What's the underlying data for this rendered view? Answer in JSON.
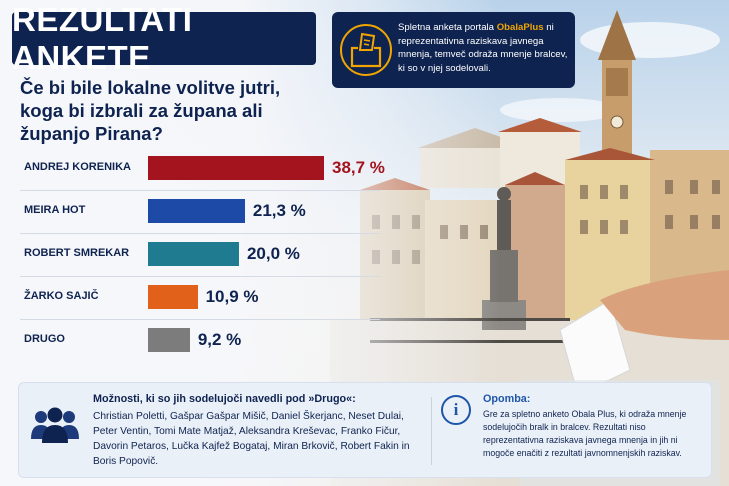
{
  "header": {
    "title": "REZULTATI ANKETE",
    "question": "Če bi bile lokalne volitve jutri, koga bi izbrali za župana ali županjo Pirana?"
  },
  "infobox": {
    "text_before": "Spletna anketa portala ",
    "brand": "ObalaPlus",
    "text_after": " ni reprezentativna raziskava javnega mnenja, temveč odraža mnenje bralcev, ki so v njej sodelovali."
  },
  "chart_data": {
    "type": "bar",
    "orientation": "horizontal",
    "categories": [
      "ANDREJ KORENIKA",
      "MEIRA HOT",
      "ROBERT SMREKAR",
      "ŽARKO SAJIČ",
      "DRUGO"
    ],
    "values": [
      38.7,
      21.3,
      20.0,
      10.9,
      9.2
    ],
    "value_labels": [
      "38,7 %",
      "21,3 %",
      "20,0 %",
      "10,9 %",
      "9,2 %"
    ],
    "unit": "%",
    "colors": [
      "#a3141e",
      "#1d4aa6",
      "#1f7c90",
      "#e2611a",
      "#7c7c7c"
    ],
    "xlim": [
      0,
      40
    ]
  },
  "others": {
    "title": "Možnosti, ki so jih sodelujoči navedli pod »Drugo«:",
    "list": "Christian Poletti, Gašpar Gašpar Mišič, Daniel Škerjanc, Neset Dulai, Peter Ventin, Tomi Mate Matjaž, Aleksandra Kreševac, Franko Fičur, Davorin Petaros, Lučka Kajfež Bogataj, Miran Brkovič, Robert Fakin in Boris Popovič."
  },
  "note": {
    "title": "Opomba:",
    "text": "Gre za spletno anketo Obala Plus, ki odraža mnenje sodelujočih bralk in bralcev. Rezultati niso reprezentativna raziskava javnega mnenja in jih ni mogoče enačiti z rezultati javnomnenjskih raziskav."
  },
  "icons": {
    "ballot": "ballot-box-icon",
    "people": "people-group-icon",
    "info": "info-icon"
  }
}
